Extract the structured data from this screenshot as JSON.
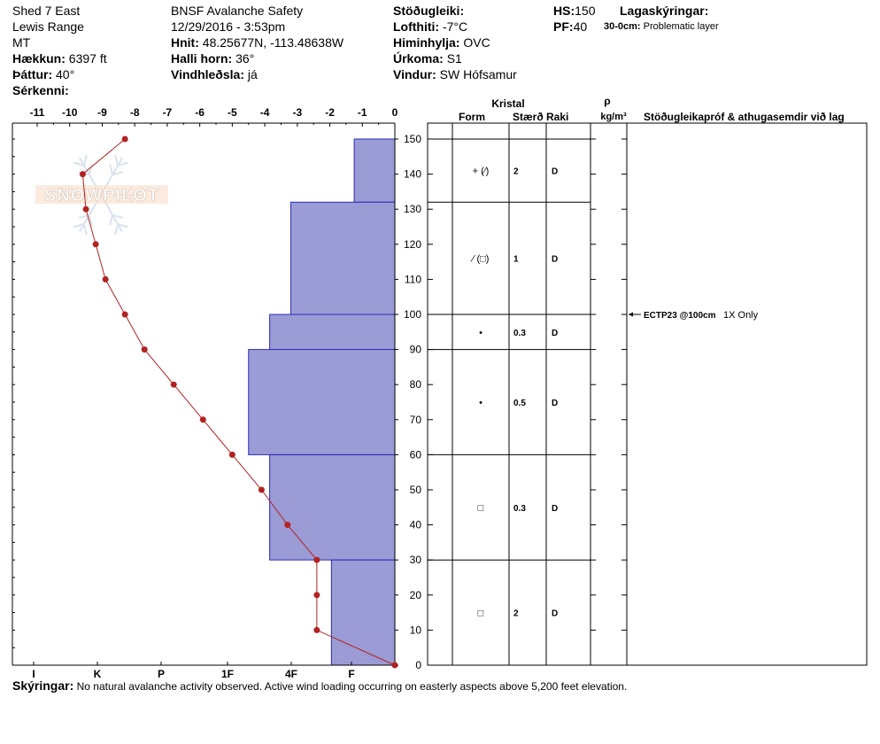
{
  "header": {
    "location": "Shed 7 East",
    "range": "Lewis Range",
    "state": "MT",
    "elevation_label": "Hækkun:",
    "elevation_value": "6397 ft",
    "aspect_label": "Þáttur:",
    "aspect_value": "40°",
    "features_label": "Sérkenni:",
    "org": "BNSF Avalanche Safety",
    "datetime": "12/29/2016 - 3:53pm",
    "coords_label": "Hnit:",
    "coords_value": "48.25677N, -113.48638W",
    "slope_label": "Halli horn:",
    "slope_value": "36°",
    "wind_loading_label": "Vindhleðsla:",
    "wind_loading_value": "já",
    "stability_label": "Stöðugleiki:",
    "air_temp_label": "Lofthiti:",
    "air_temp_value": "-7°C",
    "sky_label": "Himinhylja:",
    "sky_value": "OVC",
    "precip_label": "Úrkoma:",
    "precip_value": "S1",
    "wind_label": "Vindur:",
    "wind_value": "SW Hófsamur",
    "hs_label": "HS:",
    "hs_value": "150",
    "pf_label": "PF:",
    "pf_value": "40",
    "legend_label": "Lagaskýringar:",
    "layer_note_range": "30-0cm:",
    "layer_note_text": "Problematic layer"
  },
  "logo_text": "SNOWPILOT",
  "columns": {
    "crystal": "Kristal",
    "form": "Form",
    "size": "Stærð",
    "moisture": "Raki",
    "rho": "ρ",
    "density_unit": "kg/m³",
    "tests": "Stöðugleikapróf & athugasemdir við lag"
  },
  "chart_data": {
    "type": "snow-profile",
    "temperature_axis": {
      "ticks": [
        "-11",
        "-10",
        "-9",
        "-8",
        "-7",
        "-6",
        "-5",
        "-4",
        "-3",
        "-2",
        "-1",
        "0"
      ],
      "range": [
        -11,
        0
      ]
    },
    "hardness_axis": {
      "ticks": [
        "I",
        "K",
        "P",
        "1F",
        "4F",
        "F"
      ]
    },
    "depth_axis": {
      "ticks": [
        "0",
        "10",
        "20",
        "30",
        "40",
        "50",
        "60",
        "70",
        "80",
        "90",
        "100",
        "110",
        "120",
        "130",
        "140",
        "150"
      ],
      "range": [
        0,
        150
      ]
    },
    "colors": {
      "hardness_fill": "#9b9bd6",
      "hardness_stroke": "#2a2ab8",
      "temp_line": "#b22222"
    },
    "temperature_profile": [
      {
        "depth": 150,
        "temp": -8.3
      },
      {
        "depth": 140,
        "temp": -9.6
      },
      {
        "depth": 130,
        "temp": -9.5
      },
      {
        "depth": 120,
        "temp": -9.2
      },
      {
        "depth": 110,
        "temp": -8.9
      },
      {
        "depth": 100,
        "temp": -8.3
      },
      {
        "depth": 90,
        "temp": -7.7
      },
      {
        "depth": 80,
        "temp": -6.8
      },
      {
        "depth": 70,
        "temp": -5.9
      },
      {
        "depth": 60,
        "temp": -5.0
      },
      {
        "depth": 50,
        "temp": -4.1
      },
      {
        "depth": 40,
        "temp": -3.3
      },
      {
        "depth": 30,
        "temp": -2.4
      },
      {
        "depth": 20,
        "temp": -2.4
      },
      {
        "depth": 10,
        "temp": -2.4
      },
      {
        "depth": 0,
        "temp": 0.0
      }
    ],
    "layers": [
      {
        "top": 150,
        "bottom": 132,
        "hardness_temp": -1.25,
        "form": "+ (⁄)",
        "size": "2",
        "moisture": "D"
      },
      {
        "top": 132,
        "bottom": 100,
        "hardness_temp": -3.2,
        "form": "⁄ (□)",
        "size": "1",
        "moisture": "D"
      },
      {
        "top": 100,
        "bottom": 90,
        "hardness_temp": -3.85,
        "form": "•",
        "size": "0.3",
        "moisture": "D"
      },
      {
        "top": 90,
        "bottom": 60,
        "hardness_temp": -4.5,
        "form": "•",
        "size": "0.5",
        "moisture": "D"
      },
      {
        "top": 60,
        "bottom": 30,
        "hardness_temp": -3.85,
        "form": "□",
        "size": "0.3",
        "moisture": "D"
      },
      {
        "top": 30,
        "bottom": 0,
        "hardness_temp": -1.95,
        "form": "□",
        "size": "2",
        "moisture": "D"
      }
    ],
    "tests": [
      {
        "depth": 100,
        "label": "ECTP23 @100cm",
        "note": "1X Only"
      }
    ]
  },
  "footer": {
    "label": "Skýringar:",
    "text": "No natural avalanche activity observed. Active wind loading occurring on easterly aspects above 5,200 feet elevation."
  }
}
